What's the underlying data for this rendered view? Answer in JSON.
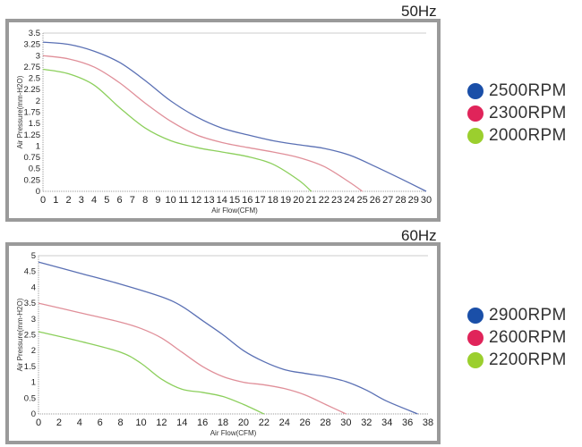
{
  "chart_data": [
    {
      "type": "line",
      "title": "50Hz",
      "xlabel": "Air Flow(CFM)",
      "ylabel": "Air Pressure(mm-H2O)",
      "xlim": [
        0,
        30
      ],
      "ylim": [
        0,
        3.5
      ],
      "xticks": [
        0,
        1,
        2,
        3,
        4,
        5,
        6,
        7,
        8,
        9,
        10,
        11,
        12,
        13,
        14,
        15,
        16,
        17,
        18,
        19,
        20,
        21,
        22,
        23,
        24,
        25,
        26,
        27,
        28,
        29,
        30
      ],
      "yticks": [
        0,
        0.25,
        0.5,
        0.75,
        1,
        1.25,
        1.5,
        1.75,
        2,
        2.25,
        2.5,
        2.75,
        3,
        3.25,
        3.5
      ],
      "legend": "right",
      "series": [
        {
          "name": "2500RPM",
          "color": "#1a4fa8",
          "line": "#5a70b4",
          "points": [
            [
              0,
              3.3
            ],
            [
              2,
              3.25
            ],
            [
              4,
              3.1
            ],
            [
              6,
              2.85
            ],
            [
              8,
              2.45
            ],
            [
              10,
              2.0
            ],
            [
              12,
              1.65
            ],
            [
              14,
              1.4
            ],
            [
              16,
              1.25
            ],
            [
              18,
              1.12
            ],
            [
              20,
              1.03
            ],
            [
              22,
              0.95
            ],
            [
              24,
              0.8
            ],
            [
              26,
              0.55
            ],
            [
              28,
              0.28
            ],
            [
              30,
              0
            ]
          ]
        },
        {
          "name": "2300RPM",
          "color": "#e0245a",
          "line": "#e08f99",
          "points": [
            [
              0,
              3.0
            ],
            [
              2,
              2.93
            ],
            [
              4,
              2.75
            ],
            [
              6,
              2.4
            ],
            [
              8,
              1.95
            ],
            [
              10,
              1.55
            ],
            [
              12,
              1.25
            ],
            [
              14,
              1.08
            ],
            [
              16,
              0.97
            ],
            [
              18,
              0.87
            ],
            [
              20,
              0.75
            ],
            [
              22,
              0.55
            ],
            [
              24,
              0.2
            ],
            [
              25,
              0
            ]
          ]
        },
        {
          "name": "2000RPM",
          "color": "#9bcf2e",
          "line": "#8ccf5c",
          "points": [
            [
              0,
              2.7
            ],
            [
              2,
              2.6
            ],
            [
              4,
              2.35
            ],
            [
              6,
              1.85
            ],
            [
              8,
              1.4
            ],
            [
              10,
              1.12
            ],
            [
              12,
              0.97
            ],
            [
              14,
              0.87
            ],
            [
              16,
              0.77
            ],
            [
              18,
              0.6
            ],
            [
              20,
              0.25
            ],
            [
              21,
              0
            ]
          ]
        }
      ]
    },
    {
      "type": "line",
      "title": "60Hz",
      "xlabel": "Air Flow(CFM)",
      "ylabel": "Air Pressure(mm-H2O)",
      "xlim": [
        0,
        38
      ],
      "ylim": [
        0,
        5
      ],
      "xticks": [
        0,
        2,
        4,
        6,
        8,
        10,
        12,
        14,
        16,
        18,
        20,
        22,
        24,
        26,
        28,
        30,
        32,
        34,
        36,
        38
      ],
      "yticks": [
        0,
        0.5,
        1,
        1.5,
        2,
        2.5,
        3,
        3.5,
        4,
        4.5,
        5
      ],
      "legend": "right",
      "series": [
        {
          "name": "2900RPM",
          "color": "#1a4fa8",
          "line": "#5a70b4",
          "points": [
            [
              0,
              4.8
            ],
            [
              4,
              4.45
            ],
            [
              8,
              4.1
            ],
            [
              12,
              3.7
            ],
            [
              14,
              3.4
            ],
            [
              16,
              2.95
            ],
            [
              18,
              2.5
            ],
            [
              20,
              2.0
            ],
            [
              22,
              1.65
            ],
            [
              24,
              1.4
            ],
            [
              26,
              1.28
            ],
            [
              28,
              1.18
            ],
            [
              30,
              1.02
            ],
            [
              32,
              0.75
            ],
            [
              34,
              0.4
            ],
            [
              37,
              0
            ]
          ]
        },
        {
          "name": "2600RPM",
          "color": "#e0245a",
          "line": "#e08f99",
          "points": [
            [
              0,
              3.5
            ],
            [
              4,
              3.2
            ],
            [
              8,
              2.9
            ],
            [
              10,
              2.7
            ],
            [
              12,
              2.4
            ],
            [
              14,
              1.95
            ],
            [
              16,
              1.5
            ],
            [
              18,
              1.18
            ],
            [
              20,
              1.0
            ],
            [
              22,
              0.92
            ],
            [
              24,
              0.8
            ],
            [
              26,
              0.6
            ],
            [
              28,
              0.3
            ],
            [
              30,
              0
            ]
          ]
        },
        {
          "name": "2200RPM",
          "color": "#9bcf2e",
          "line": "#8ccf5c",
          "points": [
            [
              0,
              2.6
            ],
            [
              4,
              2.3
            ],
            [
              8,
              1.95
            ],
            [
              10,
              1.6
            ],
            [
              12,
              1.1
            ],
            [
              14,
              0.78
            ],
            [
              16,
              0.68
            ],
            [
              18,
              0.55
            ],
            [
              20,
              0.3
            ],
            [
              22,
              0
            ]
          ]
        }
      ]
    }
  ]
}
